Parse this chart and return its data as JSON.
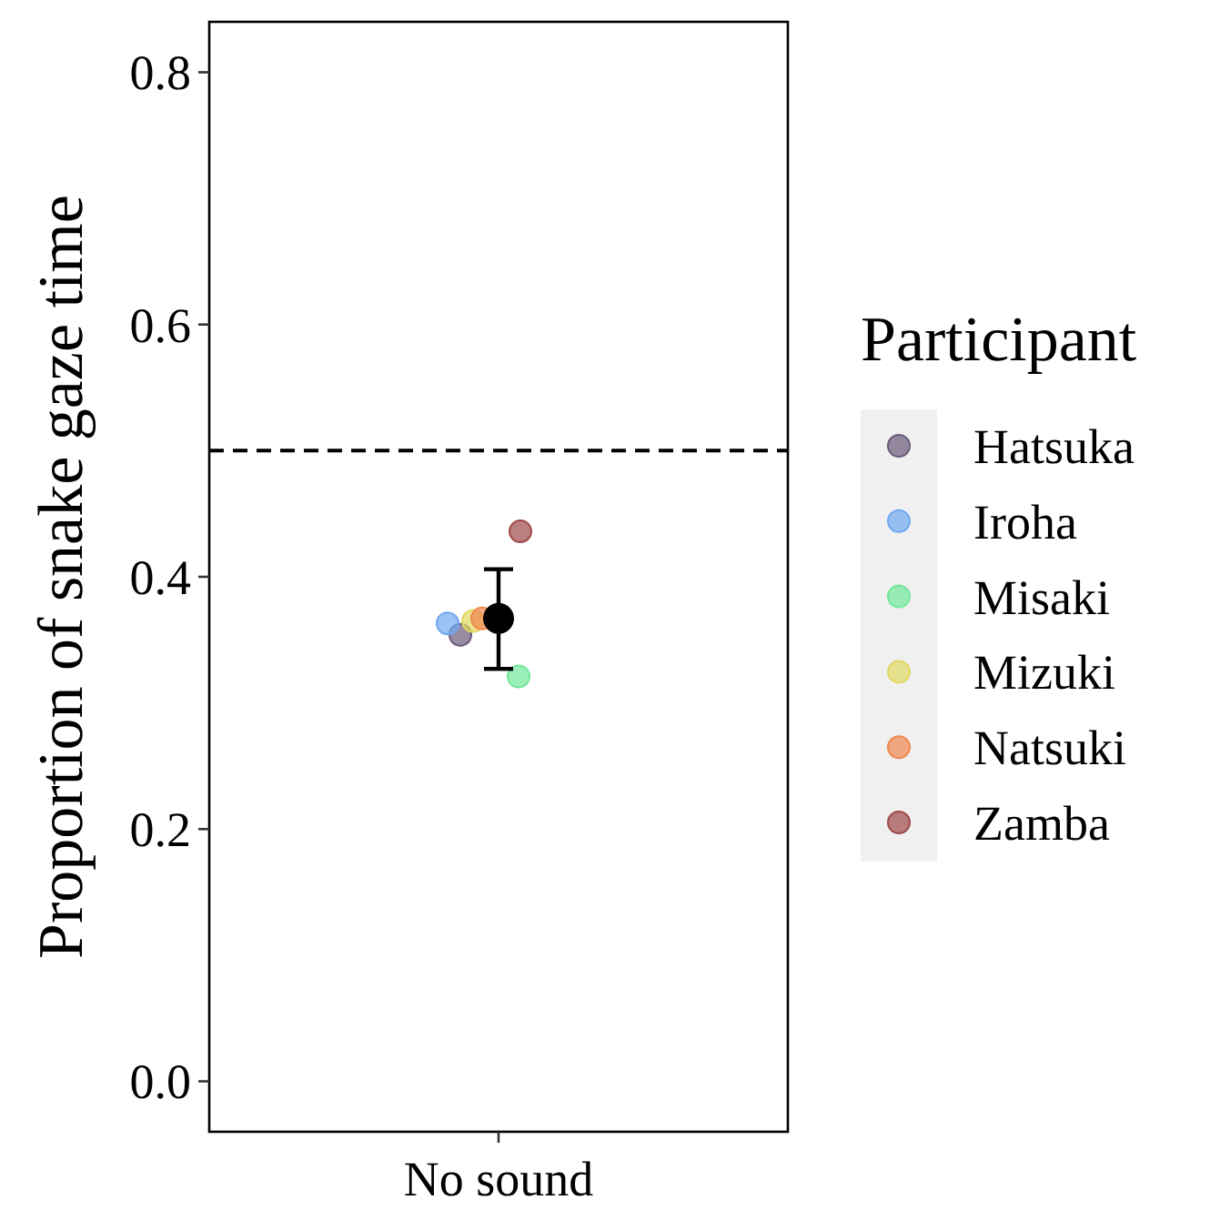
{
  "chart_data": {
    "type": "scatter",
    "ylabel": "Proportion of snake gaze time",
    "categories": [
      "No sound"
    ],
    "ylim": [
      -0.04,
      0.84
    ],
    "yticks": [
      {
        "value": 0,
        "label": "0.0"
      },
      {
        "value": 0.2,
        "label": "0.2"
      },
      {
        "value": 0.4,
        "label": "0.4"
      },
      {
        "value": 0.6,
        "label": "0.6"
      },
      {
        "value": 0.8,
        "label": "0.8"
      }
    ],
    "grid": false,
    "legend": "right",
    "legend_title": "Participant",
    "marker": "circle",
    "ref_lines": [
      {
        "axis": "y",
        "value": 0.5,
        "line_style": "dashed",
        "color": "#000000"
      }
    ],
    "series": [
      {
        "name": "Hatsuka",
        "color": "#6b5a7a",
        "x": [
          "No sound"
        ],
        "values": [
          0.354
        ]
      },
      {
        "name": "Iroha",
        "color": "#70a8f0",
        "x": [
          "No sound"
        ],
        "values": [
          0.363
        ]
      },
      {
        "name": "Misaki",
        "color": "#70e89a",
        "x": [
          "No sound"
        ],
        "values": [
          0.321
        ]
      },
      {
        "name": "Mizuki",
        "color": "#e0d860",
        "x": [
          "No sound"
        ],
        "values": [
          0.365
        ]
      },
      {
        "name": "Natsuki",
        "color": "#f08850",
        "x": [
          "No sound"
        ],
        "values": [
          0.367
        ]
      },
      {
        "name": "Zamba",
        "color": "#a04848",
        "x": [
          "No sound"
        ],
        "values": [
          0.436
        ]
      },
      {
        "color": "#000000",
        "x": [
          "No sound"
        ],
        "values": [
          0.367
        ],
        "errors": [
          [
            0.327,
            0.406
          ]
        ]
      }
    ]
  }
}
